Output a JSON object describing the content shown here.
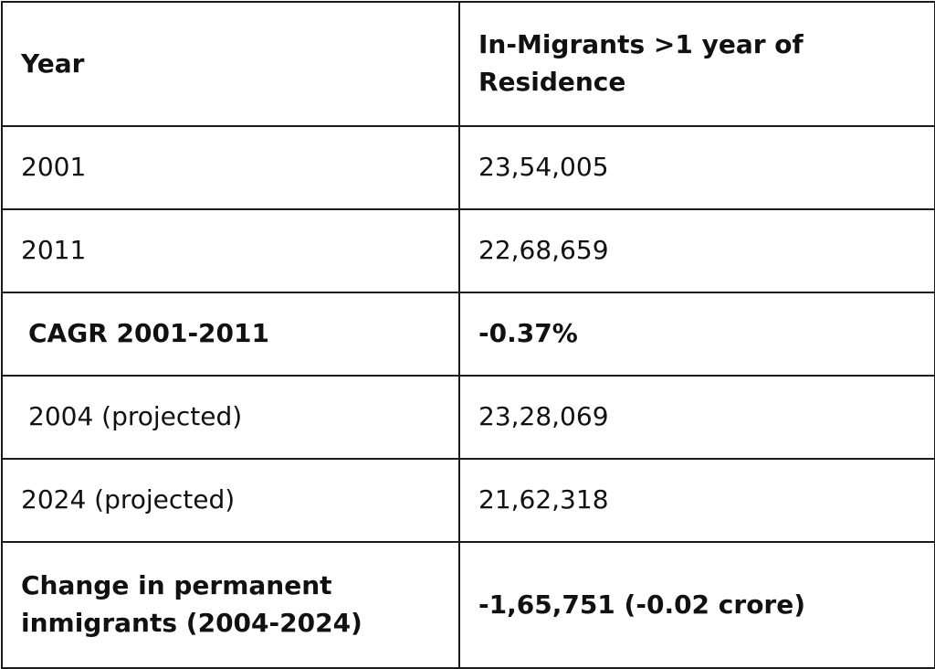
{
  "table": {
    "headers": [
      "Year",
      "In-Migrants >1 year of Residence"
    ],
    "rows": [
      {
        "label": "2001",
        "value": "23,54,005",
        "bold": false
      },
      {
        "label": "2011",
        "value": "22,68,659",
        "bold": false
      },
      {
        "label": "CAGR 2001-2011",
        "value": "-0.37%",
        "bold": true
      },
      {
        "label": "2004 (projected)",
        "value": "23,28,069",
        "bold": false
      },
      {
        "label": "2024 (projected)",
        "value": "21,62,318",
        "bold": false
      },
      {
        "label": "Change in permanent inmigrants (2004-2024)",
        "value": "-1,65,751 (-0.02 crore)",
        "bold": true
      }
    ]
  }
}
